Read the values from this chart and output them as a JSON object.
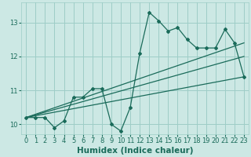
{
  "title": "",
  "xlabel": "Humidex (Indice chaleur)",
  "ylabel": "",
  "xlim": [
    -0.5,
    23.5
  ],
  "ylim": [
    9.7,
    13.6
  ],
  "yticks": [
    10,
    11,
    12,
    13
  ],
  "xticks": [
    0,
    1,
    2,
    3,
    4,
    5,
    6,
    7,
    8,
    9,
    10,
    11,
    12,
    13,
    14,
    15,
    16,
    17,
    18,
    19,
    20,
    21,
    22,
    23
  ],
  "line_color": "#1a6b5a",
  "bg_color": "#cce8e4",
  "grid_color": "#9ecdc7",
  "line1_x": [
    0,
    1,
    2,
    3,
    4,
    5,
    6,
    7,
    8,
    9,
    10,
    11,
    12,
    13,
    14,
    15,
    16,
    17,
    18,
    19,
    20,
    21,
    22,
    23
  ],
  "line1_y": [
    10.2,
    10.2,
    10.2,
    9.9,
    10.1,
    10.8,
    10.8,
    11.05,
    11.05,
    10.0,
    9.8,
    10.5,
    12.1,
    13.3,
    13.05,
    12.75,
    12.85,
    12.5,
    12.25,
    12.25,
    12.25,
    12.8,
    12.4,
    11.4
  ],
  "trend1_x": [
    0,
    23
  ],
  "trend1_y": [
    10.2,
    11.4
  ],
  "trend2_x": [
    0,
    23
  ],
  "trend2_y": [
    10.2,
    12.0
  ],
  "trend3_x": [
    0,
    23
  ],
  "trend3_y": [
    10.2,
    12.4
  ],
  "line_width": 0.9,
  "marker": "D",
  "marker_size": 2.0,
  "tick_fontsize": 6,
  "label_fontsize": 7.5
}
